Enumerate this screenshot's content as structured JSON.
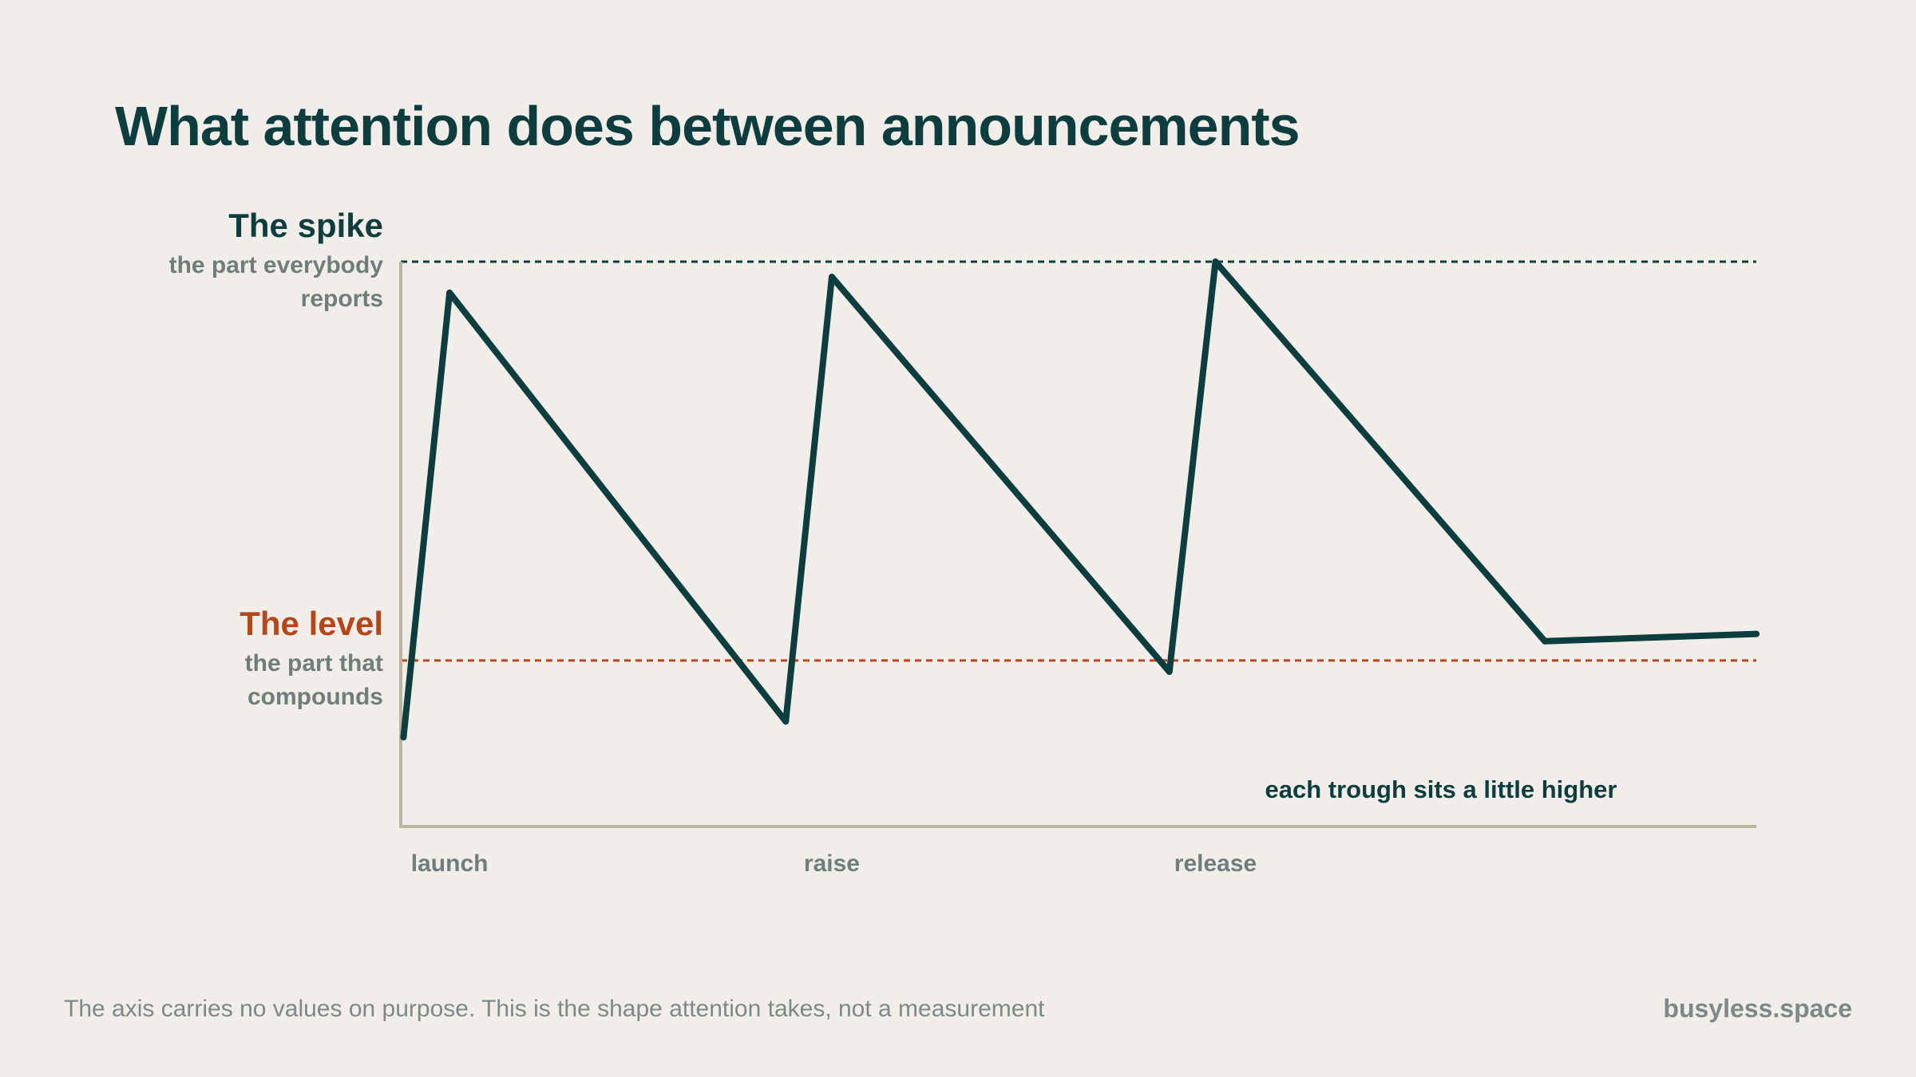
{
  "title": "What attention does between announcements",
  "annotations": {
    "spike": {
      "label": "The spike",
      "sub_line1": "the part everybody",
      "sub_line2": "reports"
    },
    "level": {
      "label": "The level",
      "sub_line1": "the part that",
      "sub_line2": "compounds"
    }
  },
  "footnote": "The axis carries no values on purpose. This is the shape attention takes, not a measurement",
  "brand": "busyless.space",
  "colors": {
    "background": "#f1eee9",
    "line": "#0d3d3f",
    "spike_reference": "#0d3d3f",
    "level_reference": "#b5461a",
    "axis": "#bdb6a1",
    "muted_text": "#6f7d7b"
  },
  "chart_data": {
    "type": "line",
    "title": "What attention does between announcements",
    "xlabel": "",
    "ylabel": "",
    "xlim": [
      0,
      100
    ],
    "ylim": [
      0,
      100
    ],
    "grid": false,
    "axis_values_shown": false,
    "x_events": [
      {
        "label": "launch",
        "x": 3.6
      },
      {
        "label": "raise",
        "x": 31.8
      },
      {
        "label": "release",
        "x": 60.1
      }
    ],
    "series": [
      {
        "x": [
          0.2,
          3.6,
          28.4,
          31.8,
          56.7,
          60.1,
          84.4,
          100
        ],
        "values": [
          15.8,
          94.5,
          18.6,
          97.3,
          27.4,
          100,
          32.8,
          34.1
        ]
      }
    ],
    "reference_lines": [
      {
        "label": "The spike",
        "y": 100
      },
      {
        "label": "The level",
        "y": 29.4
      }
    ],
    "annotation": {
      "text": "each trough sits a little higher",
      "x": 60.1,
      "y": 6.5
    }
  }
}
